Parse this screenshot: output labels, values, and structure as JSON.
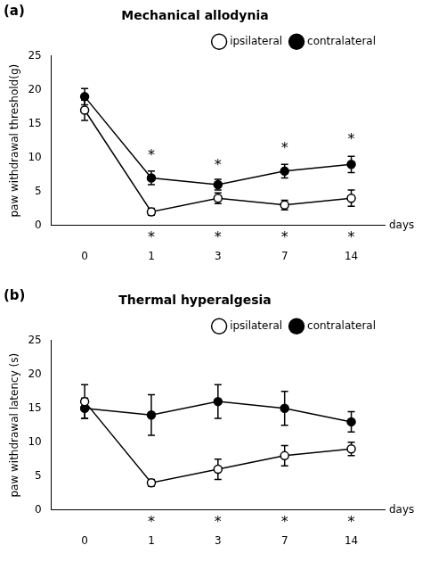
{
  "chart_data": [
    {
      "type": "line",
      "title": "Mechanical allodynia",
      "panel_label": "(a)",
      "x_label": "days",
      "y_label": "paw withdrawal threshold(g)",
      "categories": [
        "0",
        "1",
        "3",
        "7",
        "14"
      ],
      "series": [
        {
          "name": "ipsilateral",
          "color": "#000000",
          "marker": "open_circle",
          "values": [
            17.0,
            2.0,
            4.0,
            3.0,
            4.0
          ],
          "errors": [
            1.5,
            0.5,
            0.8,
            0.7,
            1.2
          ]
        },
        {
          "name": "contralateral",
          "color": "#000000",
          "marker": "circle",
          "values": [
            19.0,
            7.0,
            6.0,
            8.0,
            9.0
          ],
          "errors": [
            1.2,
            1.0,
            0.8,
            1.0,
            1.2
          ]
        }
      ],
      "ylim": [
        0,
        25
      ],
      "yticks": [
        0,
        5,
        10,
        15,
        20,
        25
      ],
      "grid": false,
      "legend": "upper right",
      "annotations": [
        {
          "text": "*",
          "x": "1",
          "y": -0.8
        },
        {
          "text": "*",
          "x": "3",
          "y": -0.8
        },
        {
          "text": "*",
          "x": "7",
          "y": -0.8
        },
        {
          "text": "*",
          "x": "14",
          "y": -0.8
        },
        {
          "text": "*",
          "x": "1",
          "y": 9.2
        },
        {
          "text": "*",
          "x": "3",
          "y": 7.8
        },
        {
          "text": "*",
          "x": "7",
          "y": 10.2
        },
        {
          "text": "*",
          "x": "14",
          "y": 11.5
        }
      ]
    },
    {
      "type": "line",
      "title": "Thermal hyperalgesia",
      "panel_label": "(b)",
      "x_label": "days",
      "y_label": "paw withdrawal latency (s)",
      "categories": [
        "0",
        "1",
        "3",
        "7",
        "14"
      ],
      "series": [
        {
          "name": "ipsilateral",
          "color": "#000000",
          "marker": "open_circle",
          "values": [
            16.0,
            4.0,
            6.0,
            8.0,
            9.0
          ],
          "errors": [
            2.5,
            0.5,
            1.5,
            1.5,
            1.0
          ]
        },
        {
          "name": "contralateral",
          "color": "#000000",
          "marker": "circle",
          "values": [
            15.0,
            14.0,
            16.0,
            15.0,
            13.0
          ],
          "errors": [
            1.5,
            3.0,
            2.5,
            2.5,
            1.5
          ]
        }
      ],
      "ylim": [
        0,
        25
      ],
      "yticks": [
        0,
        5,
        10,
        15,
        20,
        25
      ],
      "grid": false,
      "legend": "upper right",
      "annotations": [
        {
          "text": "*",
          "x": "1",
          "y": -0.8
        },
        {
          "text": "*",
          "x": "3",
          "y": -0.8
        },
        {
          "text": "*",
          "x": "7",
          "y": -0.8
        },
        {
          "text": "*",
          "x": "14",
          "y": -0.8
        }
      ]
    }
  ]
}
